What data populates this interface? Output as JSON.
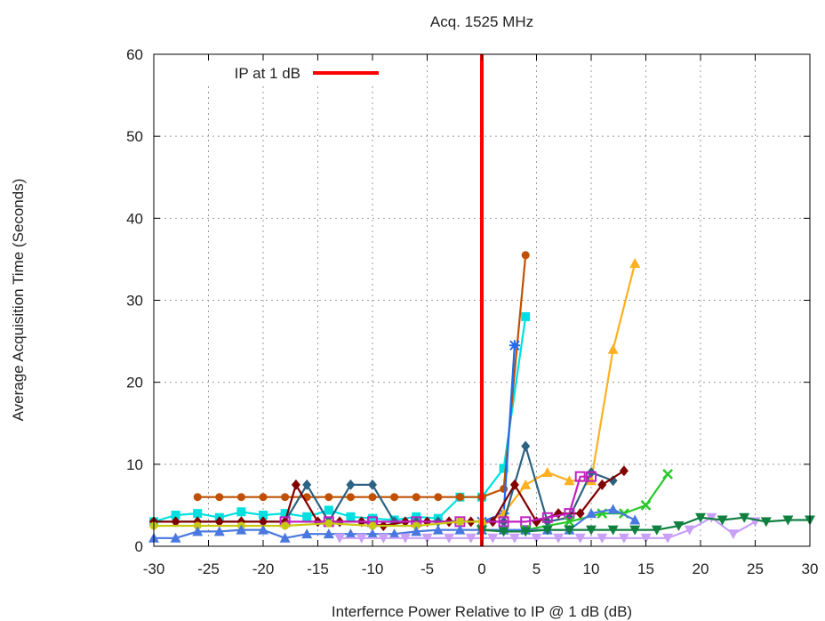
{
  "chart_data": {
    "type": "line",
    "title": "Acq. 1525 MHz",
    "xlabel": "Interfernce Power Relative to IP @ 1 dB (dB)",
    "ylabel": "Average Acquisition Time (Seconds)",
    "xlim": [
      -30,
      30
    ],
    "ylim": [
      0,
      60
    ],
    "xticks": [
      -30,
      -25,
      -20,
      -15,
      -10,
      -5,
      0,
      5,
      10,
      15,
      20,
      25,
      30
    ],
    "yticks": [
      0,
      10,
      20,
      30,
      40,
      50,
      60
    ],
    "grid": true,
    "legend_position": "top-left",
    "reference_line": {
      "label": "IP at 1 dB",
      "x": 0,
      "color": "#ff0000"
    },
    "series": [
      {
        "color": "#00e0e0",
        "marker": "square",
        "x": [
          -30,
          -28,
          -26,
          -24,
          -22,
          -20,
          -18,
          -16,
          -14,
          -12,
          -10,
          -8,
          -6,
          -4,
          -2,
          0,
          2,
          4
        ],
        "y": [
          3,
          3.8,
          4,
          3.5,
          4.2,
          3.8,
          4,
          3.6,
          4.4,
          3.6,
          3.4,
          3.2,
          3.6,
          3.4,
          6,
          6,
          9.5,
          28
        ]
      },
      {
        "color": "#c05000",
        "marker": "circle",
        "x": [
          -26,
          -24,
          -22,
          -20,
          -18,
          -16,
          -14,
          -12,
          -10,
          -8,
          -6,
          -4,
          -2,
          0,
          2,
          4
        ],
        "y": [
          6,
          6,
          6,
          6,
          6,
          6,
          6,
          6,
          6,
          6,
          6,
          6,
          6,
          6,
          7,
          35.5
        ]
      },
      {
        "color": "#1e6cf0",
        "marker": "star",
        "x": [
          0,
          2,
          3
        ],
        "y": [
          3,
          4,
          24.5
        ]
      },
      {
        "color": "#ffb020",
        "marker": "triangle-up",
        "x": [
          0,
          2,
          4,
          6,
          8,
          10,
          12,
          14
        ],
        "y": [
          2.5,
          4,
          7.5,
          9,
          8,
          8,
          24,
          34.5
        ]
      },
      {
        "color": "#2c6282",
        "marker": "diamond",
        "x": [
          -30,
          -28,
          -26,
          -24,
          -22,
          -20,
          -18,
          -16,
          -14,
          -12,
          -10,
          -8,
          -6,
          -4,
          -2,
          0,
          2,
          4,
          6,
          8,
          10,
          12
        ],
        "y": [
          3,
          3,
          3,
          3,
          3,
          3,
          3,
          7.5,
          3,
          7.5,
          7.5,
          3,
          3,
          3,
          3,
          3,
          3,
          12.2,
          3,
          3.5,
          9,
          8
        ]
      },
      {
        "color": "#800000",
        "marker": "diamond",
        "x": [
          -30,
          -28,
          -26,
          -24,
          -22,
          -20,
          -18,
          -17,
          -15,
          -13,
          -11,
          -9,
          -7,
          -5,
          -3,
          -1,
          1,
          3,
          5,
          7,
          9,
          11,
          13
        ],
        "y": [
          3,
          3,
          3,
          3,
          3,
          3,
          3,
          7.5,
          3,
          3,
          3,
          2.5,
          3,
          3,
          3,
          3,
          3,
          7.5,
          3,
          4,
          4,
          7.5,
          9.2
        ]
      },
      {
        "color": "#c020c0",
        "marker": "square-open",
        "x": [
          -18,
          -14,
          -10,
          -6,
          -2,
          2,
          4,
          6,
          8,
          9,
          10
        ],
        "y": [
          3,
          3,
          3,
          3,
          3,
          3,
          3,
          3.5,
          4,
          8.5,
          8.5
        ]
      },
      {
        "color": "#28c828",
        "marker": "x",
        "x": [
          0,
          4,
          8,
          11,
          13,
          15,
          17
        ],
        "y": [
          2,
          2,
          3,
          4,
          4,
          5,
          8.8
        ]
      },
      {
        "color": "#c8c810",
        "marker": "circle",
        "x": [
          -30,
          -26,
          -22,
          -18,
          -14,
          -10,
          -6,
          -2,
          0
        ],
        "y": [
          2.5,
          2.5,
          2.5,
          2.5,
          2.8,
          2.5,
          2.5,
          3,
          3
        ]
      },
      {
        "color": "#4878e0",
        "marker": "triangle-up",
        "x": [
          -30,
          -28,
          -26,
          -24,
          -22,
          -20,
          -18,
          -16,
          -14,
          -12,
          -10,
          -8,
          -6,
          -4,
          -2,
          0,
          2,
          4,
          6,
          8,
          10,
          12,
          14
        ],
        "y": [
          1,
          1,
          1.8,
          1.8,
          2,
          2,
          1,
          1.5,
          1.5,
          1.5,
          1.5,
          1.5,
          1.8,
          2,
          2,
          2,
          2,
          2,
          2,
          2,
          4,
          4.5,
          3.2
        ]
      },
      {
        "color": "#c8a0f8",
        "marker": "triangle-down",
        "x": [
          -13,
          -11,
          -9,
          -7,
          -5,
          -3,
          -1,
          1,
          3,
          5,
          7,
          9,
          11,
          13,
          15,
          17,
          19,
          21,
          23,
          25
        ],
        "y": [
          1,
          1,
          1,
          1,
          1,
          1,
          1,
          1,
          1,
          1,
          1,
          1,
          1,
          1,
          1,
          1,
          2,
          3.5,
          1.5,
          3
        ]
      },
      {
        "color": "#108040",
        "marker": "triangle-down",
        "x": [
          0,
          2,
          4,
          6,
          8,
          10,
          12,
          14,
          16,
          18,
          20,
          22,
          24,
          26,
          28,
          30
        ],
        "y": [
          2,
          1.8,
          1.8,
          2,
          2,
          2,
          2,
          2,
          2,
          2.5,
          3.5,
          3.2,
          3.5,
          3,
          3.2,
          3.2
        ]
      }
    ]
  }
}
